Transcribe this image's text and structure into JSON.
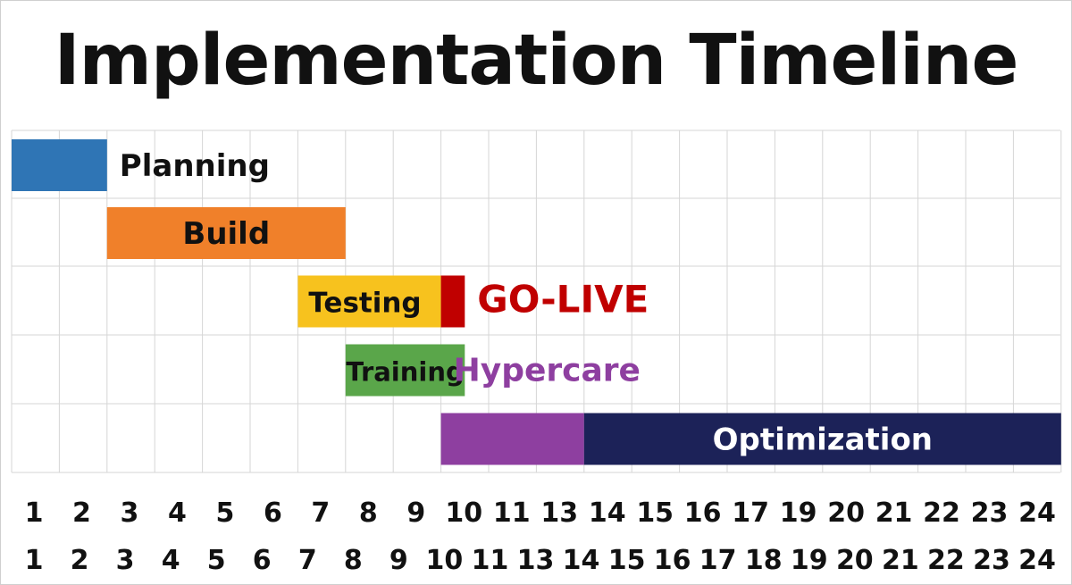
{
  "title": "Implementation Timeline",
  "chart_data": {
    "type": "gantt",
    "title": "Implementation Timeline",
    "x_ticks": [
      "1",
      "2",
      "3",
      "4",
      "5",
      "6",
      "7",
      "8",
      "9",
      "10",
      "11",
      "13",
      "14",
      "15",
      "16",
      "17",
      "19",
      "20",
      "21",
      "22",
      "23",
      "24"
    ],
    "x_ticks_second_row": [
      "1",
      "2",
      "3",
      "4",
      "5",
      "6",
      "7",
      "8",
      "9",
      "10",
      "11",
      "13",
      "14",
      "15",
      "16",
      "17",
      "18",
      "19",
      "20",
      "21",
      "22",
      "23",
      "24"
    ],
    "grid": true,
    "tasks": [
      {
        "label": "Planning",
        "row": 0,
        "start": 0,
        "end": 2,
        "color": "#2f75b5",
        "label_color": "#111111",
        "label_position": "outside-right"
      },
      {
        "label": "Build",
        "row": 1,
        "start": 2,
        "end": 7,
        "color": "#f0802a",
        "label_color": "#111111",
        "label_position": "inside"
      },
      {
        "label": "Testing",
        "row": 2,
        "start": 6,
        "end": 9,
        "color": "#f7c21e",
        "label_color": "#111111",
        "label_position": "inside-left"
      },
      {
        "label": "GO-LIVE",
        "row": 2,
        "start": 9,
        "end": 9.5,
        "color": "#c00000",
        "label_color": "#c00000",
        "label_position": "outside-right"
      },
      {
        "label": "Training",
        "row": 3,
        "start": 7,
        "end": 9.5,
        "color": "#5aa64a",
        "label_color": "#111111",
        "label_position": "inside"
      },
      {
        "label": "Hypercare",
        "row": 3,
        "start": 9,
        "end": 12,
        "color": "#8e3fa0",
        "label_color": "#8e3fa0",
        "label_position": "label-only-outside-right",
        "bar_row": 4
      },
      {
        "label": "Optimization",
        "row": 4,
        "start": 12,
        "end": 22,
        "color": "#1c2258",
        "label_color": "#ffffff",
        "label_position": "inside"
      }
    ]
  }
}
